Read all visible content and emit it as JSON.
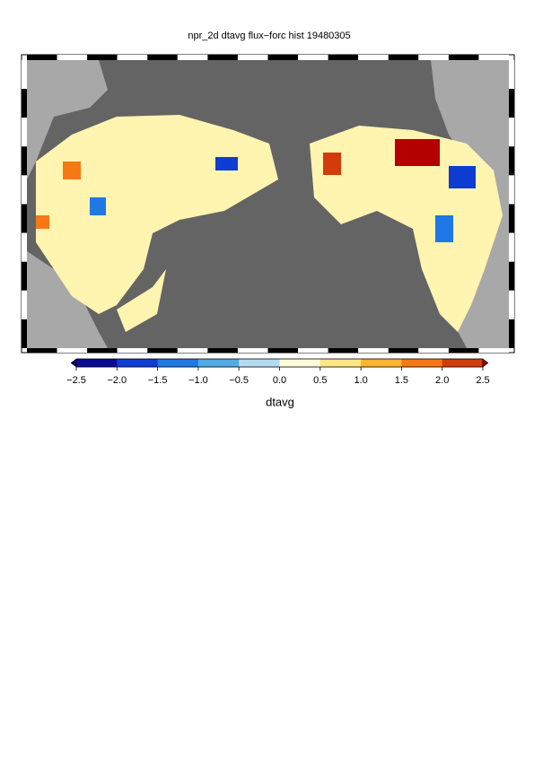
{
  "title": "npr_2d dtavg flux−forc hist 19480305",
  "colorbar": {
    "label": "dtavg",
    "range": [
      -2.5,
      2.5
    ],
    "ticks": [
      {
        "value": -2.5,
        "label": "−2.5"
      },
      {
        "value": -2.0,
        "label": "−2.0"
      },
      {
        "value": -1.5,
        "label": "−1.5"
      },
      {
        "value": -1.0,
        "label": "−1.0"
      },
      {
        "value": -0.5,
        "label": "−0.5"
      },
      {
        "value": 0,
        "label": "0.0"
      },
      0.5,
      {
        "value": 1,
        "label": "1.0"
      },
      1.5,
      {
        "value": 2,
        "label": "2.0"
      },
      2.5
    ],
    "colors": [
      "#0a0a96",
      "#0f3cd2",
      "#1e78e6",
      "#50aae6",
      "#b4dcf0",
      "#fffadc",
      "#ffe682",
      "#ffb432",
      "#f57814",
      "#d23c0a"
    ],
    "under_color": "#00005a",
    "over_color": "#8c0000"
  }
}
